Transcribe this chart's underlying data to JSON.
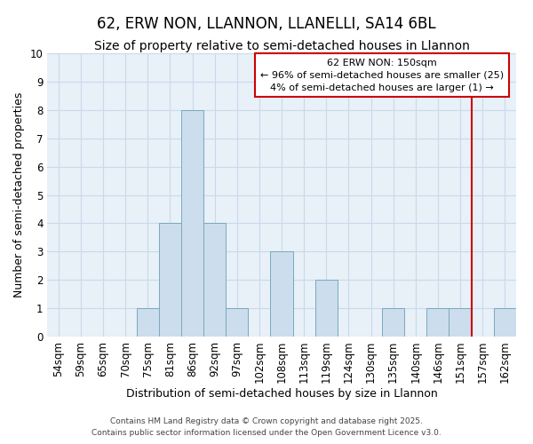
{
  "title": "62, ERW NON, LLANNON, LLANELLI, SA14 6BL",
  "subtitle": "Size of property relative to semi-detached houses in Llannon",
  "xlabel": "Distribution of semi-detached houses by size in Llannon",
  "ylabel": "Number of semi-detached properties",
  "bar_color": "#ccdded",
  "bar_edge_color": "#7aaabb",
  "grid_color": "#c8daea",
  "background_color": "#e8f0f8",
  "red_line_color": "#cc0000",
  "categories": [
    "54sqm",
    "59sqm",
    "65sqm",
    "70sqm",
    "75sqm",
    "81sqm",
    "86sqm",
    "92sqm",
    "97sqm",
    "102sqm",
    "108sqm",
    "113sqm",
    "119sqm",
    "124sqm",
    "130sqm",
    "135sqm",
    "140sqm",
    "146sqm",
    "151sqm",
    "157sqm",
    "162sqm"
  ],
  "values": [
    0,
    0,
    0,
    0,
    1,
    4,
    8,
    4,
    1,
    0,
    3,
    0,
    2,
    0,
    0,
    1,
    0,
    1,
    1,
    0,
    1
  ],
  "red_line_index": 18,
  "ylim": [
    0,
    10
  ],
  "yticks": [
    0,
    1,
    2,
    3,
    4,
    5,
    6,
    7,
    8,
    9,
    10
  ],
  "annotation_title": "62 ERW NON: 150sqm",
  "annotation_line1": "← 96% of semi-detached houses are smaller (25)",
  "annotation_line2": "4% of semi-detached houses are larger (1) →",
  "footer_line1": "Contains HM Land Registry data © Crown copyright and database right 2025.",
  "footer_line2": "Contains public sector information licensed under the Open Government Licence v3.0.",
  "title_fontsize": 12,
  "subtitle_fontsize": 10,
  "axis_label_fontsize": 9,
  "tick_fontsize": 8.5,
  "annotation_fontsize": 8,
  "footer_fontsize": 6.5
}
